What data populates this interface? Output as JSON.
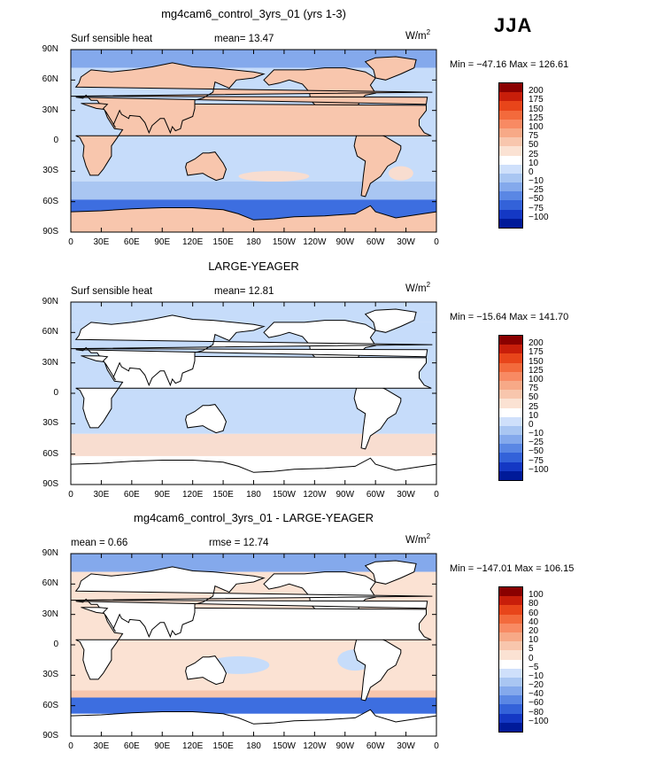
{
  "season": "JJA",
  "units_label": "W/m²",
  "colors": {
    "ocean_blue": "#a9c6f2",
    "ocean_light": "#c6dcfa",
    "land_white": "#ffffff",
    "deep_blue": "#3d6ee0",
    "warm": "#f5b598"
  },
  "chart_data": [
    {
      "type": "heatmap",
      "title": "mg4cam6_control_3yrs_01 (yrs 1-3)",
      "left_label": "Surf sensible heat",
      "mean_label": "mean=",
      "mean_value": "13.47",
      "units": "W/m",
      "units_exp": "2",
      "min_max": "Min = −47.16 Max = 126.61",
      "x_ticks": [
        "0",
        "30E",
        "60E",
        "90E",
        "120E",
        "150E",
        "180",
        "150W",
        "120W",
        "90W",
        "60W",
        "30W",
        "0"
      ],
      "y_ticks": [
        "90N",
        "60N",
        "30N",
        "0",
        "30S",
        "60S",
        "90S"
      ],
      "colorbar_levels": [
        "200",
        "175",
        "150",
        "125",
        "100",
        "75",
        "50",
        "25",
        "10",
        "0",
        "−10",
        "−25",
        "−50",
        "−75",
        "−100"
      ],
      "colorbar_colors": [
        "#8a0000",
        "#c81e0a",
        "#e8451a",
        "#f36a3c",
        "#f88a63",
        "#f7a987",
        "#f8c6ad",
        "#fbe2d3",
        "#ffffff",
        "#cfe0fb",
        "#a9c6f2",
        "#84a9ec",
        "#5a87e4",
        "#3362d9",
        "#1438c4",
        "#001a99"
      ]
    },
    {
      "type": "heatmap",
      "title": "LARGE-YEAGER",
      "left_label": "Surf sensible heat",
      "mean_label": "mean=",
      "mean_value": "12.81",
      "units": "W/m",
      "units_exp": "2",
      "min_max": "Min = −15.64 Max = 141.70",
      "x_ticks": [
        "0",
        "30E",
        "60E",
        "90E",
        "120E",
        "150E",
        "180",
        "150W",
        "120W",
        "90W",
        "60W",
        "30W",
        "0"
      ],
      "y_ticks": [
        "90N",
        "60N",
        "30N",
        "0",
        "30S",
        "60S",
        "90S"
      ],
      "colorbar_levels": [
        "200",
        "175",
        "150",
        "125",
        "100",
        "75",
        "50",
        "25",
        "10",
        "0",
        "−10",
        "−25",
        "−50",
        "−75",
        "−100"
      ],
      "colorbar_colors": [
        "#8a0000",
        "#c81e0a",
        "#e8451a",
        "#f36a3c",
        "#f88a63",
        "#f7a987",
        "#f8c6ad",
        "#fbe2d3",
        "#ffffff",
        "#cfe0fb",
        "#a9c6f2",
        "#84a9ec",
        "#5a87e4",
        "#3362d9",
        "#1438c4",
        "#001a99"
      ]
    },
    {
      "type": "heatmap",
      "title": "mg4cam6_control_3yrs_01 - LARGE-YEAGER",
      "left_label": "mean =",
      "left_value": "0.66",
      "mean_label": "rmse =",
      "mean_value": "12.74",
      "units": "W/m",
      "units_exp": "2",
      "min_max": "Min = −147.01 Max = 106.15",
      "x_ticks": [
        "0",
        "30E",
        "60E",
        "90E",
        "120E",
        "150E",
        "180",
        "150W",
        "120W",
        "90W",
        "60W",
        "30W",
        "0"
      ],
      "y_ticks": [
        "90N",
        "60N",
        "30N",
        "0",
        "30S",
        "60S",
        "90S"
      ],
      "colorbar_levels": [
        "100",
        "80",
        "60",
        "40",
        "20",
        "10",
        "5",
        "0",
        "−5",
        "−10",
        "−20",
        "−40",
        "−60",
        "−80",
        "−100"
      ],
      "colorbar_colors": [
        "#8a0000",
        "#c81e0a",
        "#e8451a",
        "#f36a3c",
        "#f88a63",
        "#f7a987",
        "#f8c6ad",
        "#fbe2d3",
        "#ffffff",
        "#cfe0fb",
        "#a9c6f2",
        "#84a9ec",
        "#5a87e4",
        "#3362d9",
        "#1438c4",
        "#001a99"
      ]
    }
  ]
}
